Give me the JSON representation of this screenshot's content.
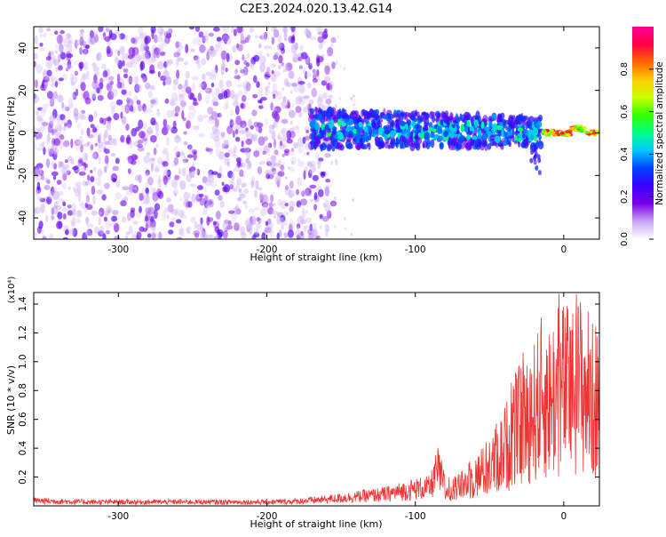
{
  "title": "C2E3.2024.020.13.42.G14",
  "chart_data": [
    {
      "type": "heatmap",
      "xlabel": "Height of straight line (km)",
      "ylabel": "Frequency (Hz)",
      "xlim": [
        -357,
        24
      ],
      "ylim": [
        -50,
        50
      ],
      "x_ticks": [
        -300,
        -200,
        -100,
        0
      ],
      "y_ticks": [
        -40,
        -20,
        0,
        20,
        40
      ],
      "colorbar": {
        "label": "Normalized spectral amplitude",
        "range": [
          0.0,
          1.0
        ],
        "ticks": [
          0.0,
          0.2,
          0.4,
          0.6,
          0.8
        ],
        "tick_labels": [
          "0.0",
          "0.2",
          "0.4",
          "0.6",
          "0.8"
        ],
        "colormap": [
          "#ffffff",
          "#c9a8f5",
          "#7a00e6",
          "#3b00ff",
          "#0040ff",
          "#00c8ff",
          "#00ff88",
          "#33ff00",
          "#ccff00",
          "#ffcc00",
          "#ff6600",
          "#ff0044",
          "#ff0099"
        ]
      },
      "description_series": [
        {
          "name": "broadband noise",
          "x_range": [
            -357,
            -155
          ],
          "freq_range": [
            -50,
            50
          ],
          "amplitude": [
            0.05,
            0.25
          ]
        },
        {
          "name": "signal band",
          "x_range": [
            -170,
            -15
          ],
          "center_hz": [
            1,
            3,
            2,
            0
          ],
          "amplitude": [
            0.2,
            0.55
          ]
        },
        {
          "name": "strong narrow line",
          "x_range": [
            -15,
            24
          ],
          "center_hz": 0,
          "amplitude": [
            0.7,
            0.95
          ]
        }
      ]
    },
    {
      "type": "line",
      "xlabel": "Height of straight line (km)",
      "ylabel": "SNR (10 * v/v)",
      "y_multiplier": "(x10⁴)",
      "xlim": [
        -357,
        24
      ],
      "ylim": [
        0,
        1.48
      ],
      "x_ticks": [
        -300,
        -200,
        -100,
        0
      ],
      "y_ticks": [
        0.2,
        0.4,
        0.6,
        0.8,
        1.0,
        1.2,
        1.4
      ],
      "y_tick_labels": [
        "0.2",
        "0.4",
        "0.6",
        "0.8",
        "1.0",
        "1.2",
        "1.4"
      ],
      "color": "#ee3333",
      "series": [
        {
          "x": [
            -357,
            -340,
            -320,
            -300,
            -280,
            -260,
            -240,
            -220,
            -200,
            -180,
            -160,
            -140,
            -120,
            -110,
            -100,
            -90,
            -85,
            -80,
            -70,
            -60,
            -50,
            -45,
            -40,
            -35,
            -30,
            -25,
            -20,
            -15,
            -10,
            -5,
            0,
            5,
            10,
            15,
            20,
            24
          ],
          "y": [
            0.04,
            0.035,
            0.03,
            0.03,
            0.03,
            0.03,
            0.03,
            0.03,
            0.03,
            0.035,
            0.05,
            0.07,
            0.09,
            0.11,
            0.13,
            0.14,
            0.28,
            0.15,
            0.2,
            0.3,
            0.4,
            0.5,
            0.6,
            0.75,
            0.85,
            0.9,
            1.0,
            1.15,
            1.1,
            1.2,
            1.25,
            1.2,
            1.3,
            1.25,
            1.1,
            1.15
          ]
        }
      ]
    }
  ]
}
